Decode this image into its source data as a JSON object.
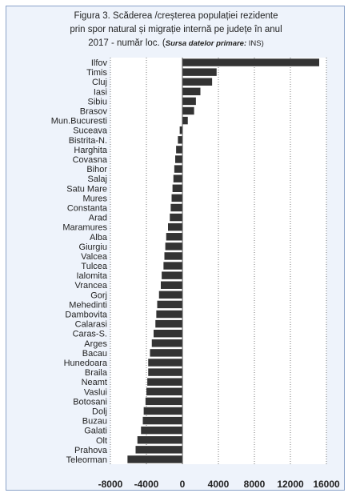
{
  "chart_data": {
    "type": "bar",
    "orientation": "horizontal",
    "title_lines": [
      "Figura 3. Scăderea /creșterea populației rezidente",
      "prin spor natural și migrație internă pe județe în anul"
    ],
    "title_line3_prefix": "2017 - număr loc. (",
    "title_source_label": "Sursa datelor primare:",
    "title_source_value": " INS)",
    "categories": [
      "Ilfov",
      "Timis",
      "Cluj",
      "Iasi",
      "Sibiu",
      "Brasov",
      "Mun.Bucuresti",
      "Suceava",
      "Bistrita-N.",
      "Harghita",
      "Covasna",
      "Bihor",
      "Salaj",
      "Satu Mare",
      "Mures",
      "Constanta",
      "Arad",
      "Maramures",
      "Alba",
      "Giurgiu",
      "Valcea",
      "Tulcea",
      "Ialomita",
      "Vrancea",
      "Gorj",
      "Mehedinti",
      "Dambovita",
      "Calarasi",
      "Caras-S.",
      "Arges",
      "Bacau",
      "Hunedoara",
      "Braila",
      "Neamt",
      "Vaslui",
      "Botosani",
      "Dolj",
      "Buzau",
      "Galati",
      "Olt",
      "Prahova",
      "Teleorman"
    ],
    "values": [
      15200,
      3800,
      3300,
      2000,
      1500,
      1300,
      600,
      -300,
      -500,
      -700,
      -800,
      -900,
      -1000,
      -1100,
      -1200,
      -1300,
      -1400,
      -1600,
      -1800,
      -1900,
      -2000,
      -2100,
      -2300,
      -2400,
      -2600,
      -2800,
      -2900,
      -3000,
      -3200,
      -3400,
      -3600,
      -3800,
      -3800,
      -3900,
      -4000,
      -4100,
      -4300,
      -4400,
      -4600,
      -5000,
      -5200,
      -6100
    ],
    "xlim": [
      -8000,
      16000
    ],
    "xticks": [
      "-8000",
      "-4000",
      "0",
      "4000",
      "8000",
      "12000",
      "16000"
    ],
    "grid": "vertical dotted",
    "bar_color": "#333333"
  }
}
